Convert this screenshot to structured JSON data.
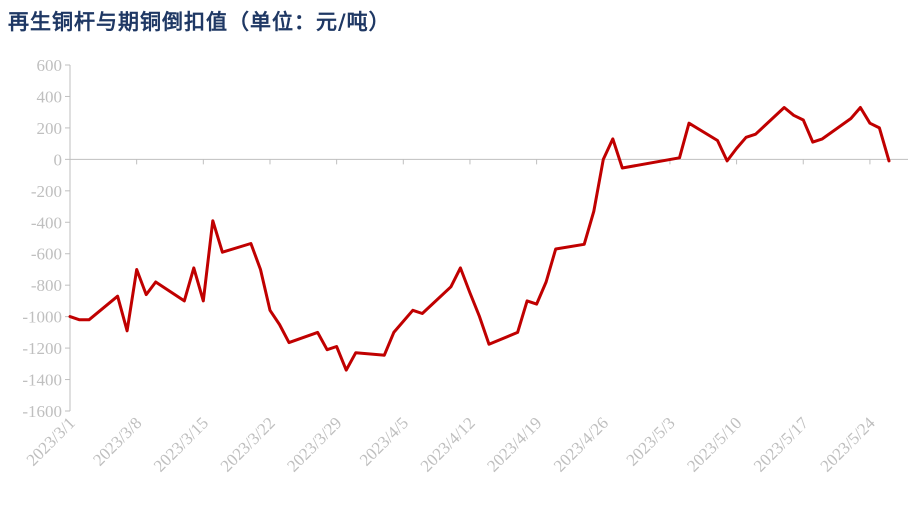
{
  "chart_data": {
    "type": "line",
    "title": "再生铜杆与期铜倒扣值（单位：元/吨）",
    "xlabel": "",
    "ylabel": "",
    "ylim": [
      -1600,
      600
    ],
    "yticks": [
      "600",
      "400",
      "200",
      "0",
      "-200",
      "-400",
      "-600",
      "-800",
      "-1000",
      "-1200",
      "-1400",
      "-1600"
    ],
    "xlim": [
      "2023-03-01",
      "2023-05-28"
    ],
    "xtick_labels": [
      "2023/3/1",
      "2023/3/8",
      "2023/3/15",
      "2023/3/22",
      "2023/3/29",
      "2023/4/5",
      "2023/4/12",
      "2023/4/19",
      "2023/4/26",
      "2023/5/3",
      "2023/5/10",
      "2023/5/17",
      "2023/5/24"
    ],
    "grid": false,
    "line_color": "#c00000",
    "series": [
      {
        "name": "",
        "x": [
          "2023-03-01",
          "2023-03-02",
          "2023-03-03",
          "2023-03-06",
          "2023-03-07",
          "2023-03-08",
          "2023-03-09",
          "2023-03-10",
          "2023-03-13",
          "2023-03-14",
          "2023-03-15",
          "2023-03-16",
          "2023-03-17",
          "2023-03-20",
          "2023-03-21",
          "2023-03-22",
          "2023-03-23",
          "2023-03-24",
          "2023-03-27",
          "2023-03-28",
          "2023-03-29",
          "2023-03-30",
          "2023-03-31",
          "2023-04-03",
          "2023-04-04",
          "2023-04-06",
          "2023-04-07",
          "2023-04-10",
          "2023-04-11",
          "2023-04-12",
          "2023-04-13",
          "2023-04-14",
          "2023-04-17",
          "2023-04-18",
          "2023-04-19",
          "2023-04-20",
          "2023-04-21",
          "2023-04-24",
          "2023-04-25",
          "2023-04-26",
          "2023-04-27",
          "2023-04-28",
          "2023-05-04",
          "2023-05-05",
          "2023-05-08",
          "2023-05-09",
          "2023-05-10",
          "2023-05-11",
          "2023-05-12",
          "2023-05-15",
          "2023-05-16",
          "2023-05-17",
          "2023-05-18",
          "2023-05-19",
          "2023-05-22",
          "2023-05-23",
          "2023-05-24",
          "2023-05-25",
          "2023-05-26"
        ],
        "y": [
          -1000,
          -1020,
          -1020,
          -870,
          -1090,
          -700,
          -860,
          -780,
          -900,
          -690,
          -900,
          -390,
          -590,
          -535,
          -700,
          -960,
          -1050,
          -1165,
          -1100,
          -1210,
          -1190,
          -1340,
          -1230,
          -1245,
          -1100,
          -960,
          -980,
          -810,
          -690,
          -850,
          -1000,
          -1175,
          -1100,
          -900,
          -920,
          -780,
          -570,
          -540,
          -330,
          0,
          130,
          -55,
          10,
          230,
          120,
          -10,
          70,
          140,
          160,
          330,
          280,
          250,
          110,
          130,
          260,
          330,
          230,
          200,
          -10
        ]
      }
    ]
  }
}
